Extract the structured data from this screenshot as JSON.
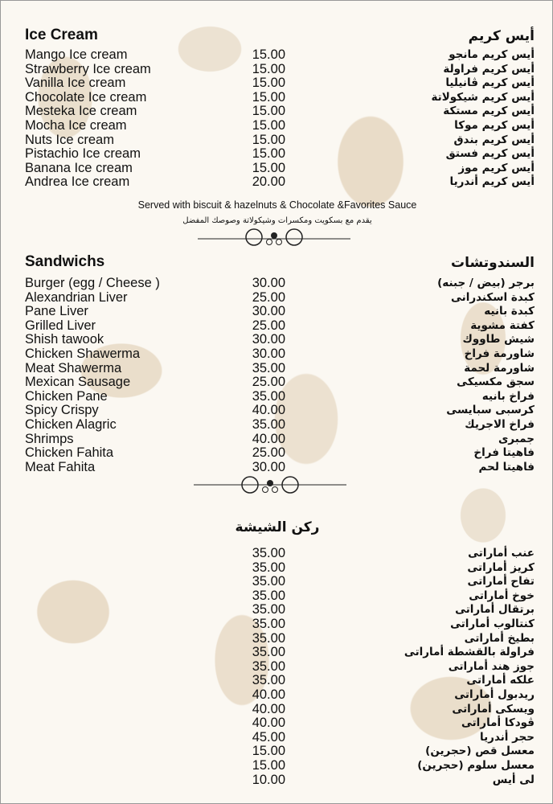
{
  "ice_cream": {
    "title_en": "Ice Cream",
    "title_ar": "أيس كريم",
    "items": [
      {
        "en": "Mango Ice cream",
        "price": "15.00",
        "ar": "أيس كريم مانجو"
      },
      {
        "en": "Strawberry Ice cream",
        "price": "15.00",
        "ar": "أيس كريم فراولة"
      },
      {
        "en": "Vanilla Ice cream",
        "price": "15.00",
        "ar": "أيس كريم ڤانيليا"
      },
      {
        "en": "Chocolate Ice cream",
        "price": "15.00",
        "ar": "أيس كريم شيكولاتة"
      },
      {
        "en": "Mesteka Ice cream",
        "price": "15.00",
        "ar": "أيس كريم مستكة"
      },
      {
        "en": "Mocha Ice cream",
        "price": "15.00",
        "ar": "أيس كريم موكا"
      },
      {
        "en": "Nuts Ice cream",
        "price": "15.00",
        "ar": "أيس كريم بندق"
      },
      {
        "en": "Pistachio Ice cream",
        "price": "15.00",
        "ar": "أيس كريم فستق"
      },
      {
        "en": "Banana Ice cream",
        "price": "15.00",
        "ar": "أيس كريم موز"
      },
      {
        "en": "Andrea Ice cream",
        "price": "20.00",
        "ar": "أيس كريم أندريا"
      }
    ],
    "note_en": "Served with biscuit & hazelnuts & Chocolate &Favorites Sauce",
    "note_ar": "يقدم مع بسكويت ومكسرات وشيكولاتة وصوصك المفضل"
  },
  "sandwiches": {
    "title_en": "Sandwichs",
    "title_ar": "السندوتشات",
    "items": [
      {
        "en": "Burger (egg / Cheese )",
        "price": "30.00",
        "ar": "برجر (بيض / جبنه)"
      },
      {
        "en": "Alexandrian Liver",
        "price": "25.00",
        "ar": "كبدة اسكندرانى"
      },
      {
        "en": "Pane Liver",
        "price": "30.00",
        "ar": "كبدة بانيه"
      },
      {
        "en": "Grilled Liver",
        "price": "25.00",
        "ar": "كفتة مشوية"
      },
      {
        "en": "Shish tawook",
        "price": "30.00",
        "ar": "شيش طاووك"
      },
      {
        "en": "Chicken Shawerma",
        "price": "30.00",
        "ar": "شاورمة فراخ"
      },
      {
        "en": "Meat Shawerma",
        "price": "35.00",
        "ar": "شاورمة لحمة"
      },
      {
        "en": "Mexican Sausage",
        "price": "25.00",
        "ar": "سجق مكسيكى"
      },
      {
        "en": "Chicken Pane",
        "price": "35.00",
        "ar": "فراخ بانيه"
      },
      {
        "en": "Spicy Crispy",
        "price": "40.00",
        "ar": "كرسبى سبايسى"
      },
      {
        "en": "Chicken Alagric",
        "price": "35.00",
        "ar": "فراخ الاجريك"
      },
      {
        "en": "Shrimps",
        "price": "40.00",
        "ar": "جمبرى"
      },
      {
        "en": "Chicken Fahita",
        "price": "25.00",
        "ar": "فاهيتا فراخ"
      },
      {
        "en": "Meat Fahita",
        "price": "30.00",
        "ar": "فاهيتا لحم"
      }
    ]
  },
  "shisha": {
    "title_ar": "ركن الشيشة",
    "items": [
      {
        "price": "35.00",
        "ar": "عنب أماراتى"
      },
      {
        "price": "35.00",
        "ar": "كريز أماراتى"
      },
      {
        "price": "35.00",
        "ar": "تفاح أماراتى"
      },
      {
        "price": "35.00",
        "ar": "خوخ أماراتى"
      },
      {
        "price": "35.00",
        "ar": "برتقال أماراتى"
      },
      {
        "price": "35.00",
        "ar": "كنتالوب أماراتى"
      },
      {
        "price": "35.00",
        "ar": "بطيخ أماراتى"
      },
      {
        "price": "35.00",
        "ar": "فراولة بالقشطة أماراتى"
      },
      {
        "price": "35.00",
        "ar": "جوز هند أماراتى"
      },
      {
        "price": "35.00",
        "ar": "علكه أماراتى"
      },
      {
        "price": "40.00",
        "ar": "ريدبول أماراتى"
      },
      {
        "price": "40.00",
        "ar": "ويسكى أماراتى"
      },
      {
        "price": "40.00",
        "ar": "ڤودكا أماراتى"
      },
      {
        "price": "45.00",
        "ar": "حجر أندريا"
      },
      {
        "price": "15.00",
        "ar": "معسل قص (حجرين)"
      },
      {
        "price": "15.00",
        "ar": "معسل سلوم (حجرين)"
      },
      {
        "price": "10.00",
        "ar": "لى أيس"
      }
    ]
  },
  "colors": {
    "background": "#fbf8f2",
    "pattern": "#eadfcd",
    "text": "#111111"
  }
}
